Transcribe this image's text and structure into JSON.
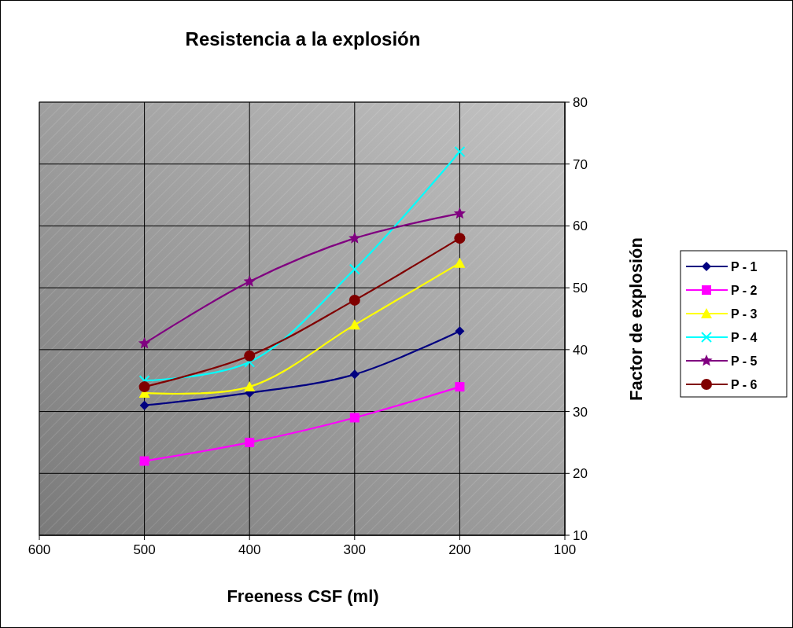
{
  "chart_data": {
    "type": "line",
    "title": "Resistencia a la explosión",
    "xlabel": "Freeness CSF (ml)",
    "ylabel": "Factor de explosión",
    "x": [
      500,
      400,
      300,
      200
    ],
    "xlim": [
      600,
      100
    ],
    "xticks": [
      600,
      500,
      400,
      300,
      200,
      100
    ],
    "ylim": [
      10,
      80
    ],
    "yticks": [
      10,
      20,
      30,
      40,
      50,
      60,
      70,
      80
    ],
    "grid": true,
    "legend": "right",
    "line_style": "solid",
    "series": [
      {
        "name": "P - 1",
        "color": "#000080",
        "marker": "diamond",
        "values": [
          31,
          33,
          36,
          43
        ]
      },
      {
        "name": "P - 2",
        "color": "#ff00ff",
        "marker": "square",
        "values": [
          22,
          25,
          29,
          34
        ]
      },
      {
        "name": "P - 3",
        "color": "#ffff00",
        "marker": "triangle",
        "values": [
          33,
          34,
          44,
          54
        ]
      },
      {
        "name": "P - 4",
        "color": "#00ffff",
        "marker": "cross",
        "values": [
          35,
          38,
          53,
          72
        ]
      },
      {
        "name": "P - 5",
        "color": "#800080",
        "marker": "star",
        "values": [
          41,
          51,
          58,
          62
        ]
      },
      {
        "name": "P - 6",
        "color": "#800000",
        "marker": "circle",
        "values": [
          34,
          39,
          48,
          58
        ]
      }
    ]
  }
}
